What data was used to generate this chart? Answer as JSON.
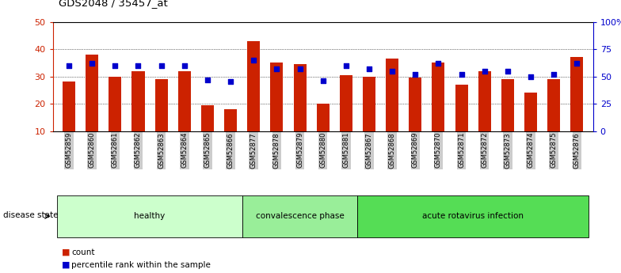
{
  "title": "GDS2048 / 35457_at",
  "samples": [
    "GSM52859",
    "GSM52860",
    "GSM52861",
    "GSM52862",
    "GSM52863",
    "GSM52864",
    "GSM52865",
    "GSM52866",
    "GSM52877",
    "GSM52878",
    "GSM52879",
    "GSM52880",
    "GSM52881",
    "GSM52867",
    "GSM52868",
    "GSM52869",
    "GSM52870",
    "GSM52871",
    "GSM52872",
    "GSM52873",
    "GSM52874",
    "GSM52875",
    "GSM52876"
  ],
  "counts": [
    28,
    38,
    30,
    32,
    29,
    32,
    19.5,
    18,
    43,
    35,
    34.5,
    20,
    30.5,
    30,
    36.5,
    29.5,
    35,
    27,
    32,
    29,
    24,
    29,
    37
  ],
  "percentiles_pct": [
    60,
    62,
    60,
    60,
    60,
    60,
    47,
    45,
    65,
    57,
    57,
    46,
    60,
    57,
    55,
    52,
    62,
    52,
    55,
    55,
    50,
    52,
    62
  ],
  "groups": [
    {
      "label": "healthy",
      "start": 0,
      "end": 8,
      "color": "#ccffcc"
    },
    {
      "label": "convalescence phase",
      "start": 8,
      "end": 13,
      "color": "#99ee99"
    },
    {
      "label": "acute rotavirus infection",
      "start": 13,
      "end": 23,
      "color": "#55dd55"
    }
  ],
  "bar_color": "#cc2200",
  "dot_color": "#0000cc",
  "left_axis_color": "#cc2200",
  "right_axis_color": "#0000cc",
  "ylim_left": [
    10,
    50
  ],
  "ylim_right": [
    0,
    100
  ],
  "left_ticks": [
    10,
    20,
    30,
    40,
    50
  ],
  "right_ticks": [
    0,
    25,
    50,
    75,
    100
  ],
  "right_tick_labels": [
    "0",
    "25",
    "50",
    "75",
    "100%"
  ],
  "grid_values": [
    20,
    30,
    40
  ],
  "disease_state_label": "disease state",
  "legend_items": [
    {
      "label": "count",
      "color": "#cc2200"
    },
    {
      "label": "percentile rank within the sample",
      "color": "#0000cc"
    }
  ],
  "background_color": "#ffffff",
  "plot_bg_color": "#ffffff",
  "tick_bg_color": "#cccccc",
  "bar_bottom": 10
}
